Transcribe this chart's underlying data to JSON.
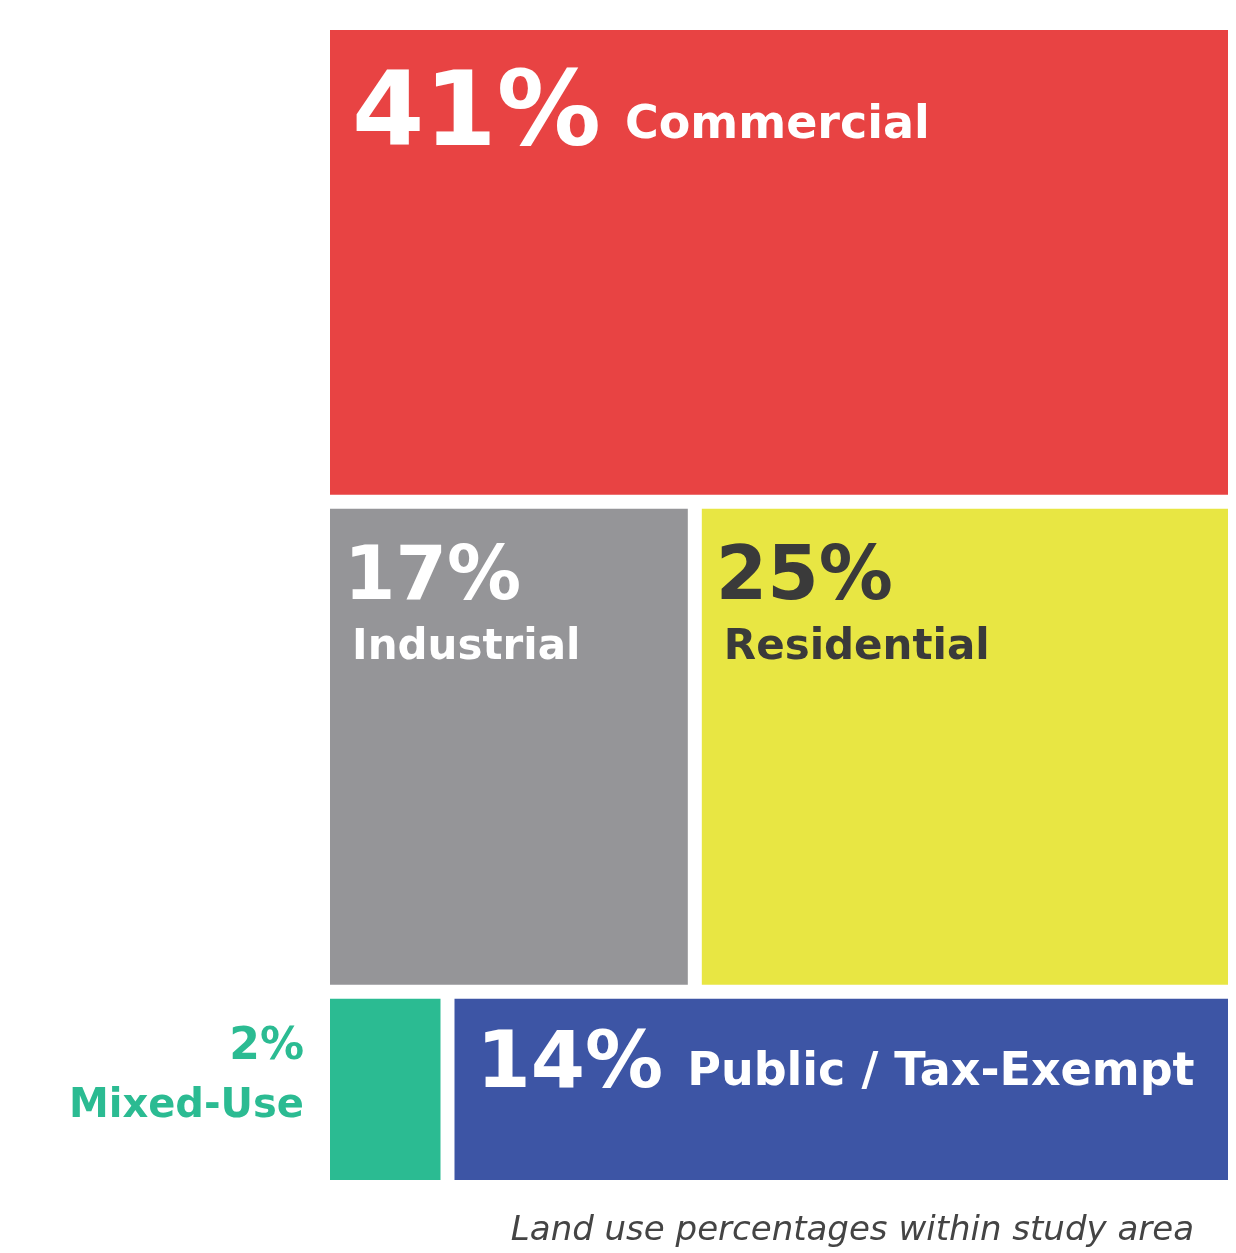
{
  "chart_data": {
    "type": "other",
    "categories": [
      "Commercial",
      "Industrial",
      "Residential",
      "Mixed-Use",
      "Public / Tax-Exempt"
    ],
    "values": [
      41,
      17,
      25,
      2,
      14
    ],
    "value_labels": [
      "41%",
      "17%",
      "25%",
      "2%",
      "14%"
    ],
    "colors": [
      "#e84343",
      "#959598",
      "#e8e643",
      "#2bbb92",
      "#3d55a5"
    ],
    "annotations": [
      "Land use percentages within study area"
    ]
  }
}
